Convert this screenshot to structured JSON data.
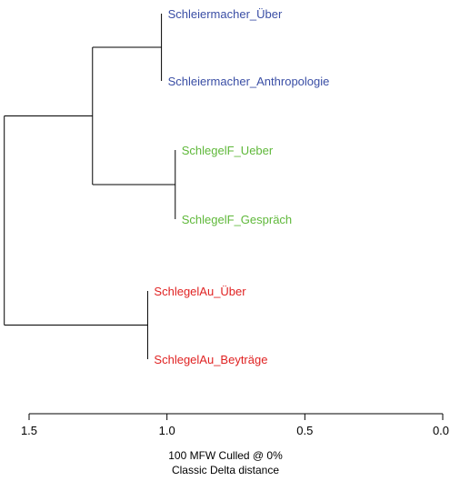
{
  "chart_data": {
    "type": "dendrogram",
    "leaves": [
      {
        "name": "Schleiermacher_Über",
        "x": 1.02,
        "color": "#3a4ea5"
      },
      {
        "name": "Schleiermacher_Anthropologie",
        "x": 1.02,
        "color": "#3a4ea5"
      },
      {
        "name": "SchlegelF_Ueber",
        "x": 0.97,
        "color": "#5fb83a"
      },
      {
        "name": "SchlegelF_Gespräch",
        "x": 0.97,
        "color": "#5fb83a"
      },
      {
        "name": "SchlegelAu_Über",
        "x": 1.07,
        "color": "#e02222"
      },
      {
        "name": "SchlegelAu_Beyträge",
        "x": 1.07,
        "color": "#e02222"
      }
    ],
    "merges": [
      {
        "children": [
          "Schleiermacher_Über",
          "Schleiermacher_Anthropologie"
        ],
        "height": 1.02
      },
      {
        "children": [
          "SchlegelF_Ueber",
          "SchlegelF_Gespräch"
        ],
        "height": 0.97
      },
      {
        "children": [
          "SchlegelAu_Über",
          "SchlegelAu_Beyträge"
        ],
        "height": 1.07
      },
      {
        "children": [
          "Schleiermacher cluster",
          "SchlegelF cluster"
        ],
        "height": 1.27
      },
      {
        "children": [
          "Schleiermacher + SchlegelF",
          "SchlegelAu cluster"
        ],
        "height": 1.59
      }
    ],
    "x_axis": {
      "ticks": [
        1.5,
        1.0,
        0.5,
        0.0
      ],
      "tick_labels": [
        "1.5",
        "1.0",
        "0.5",
        "0.0"
      ],
      "range": [
        1.5,
        0.0
      ],
      "reversed": true
    },
    "caption": [
      "100 MFW  Culled @ 0%",
      "Classic Delta distance"
    ]
  }
}
